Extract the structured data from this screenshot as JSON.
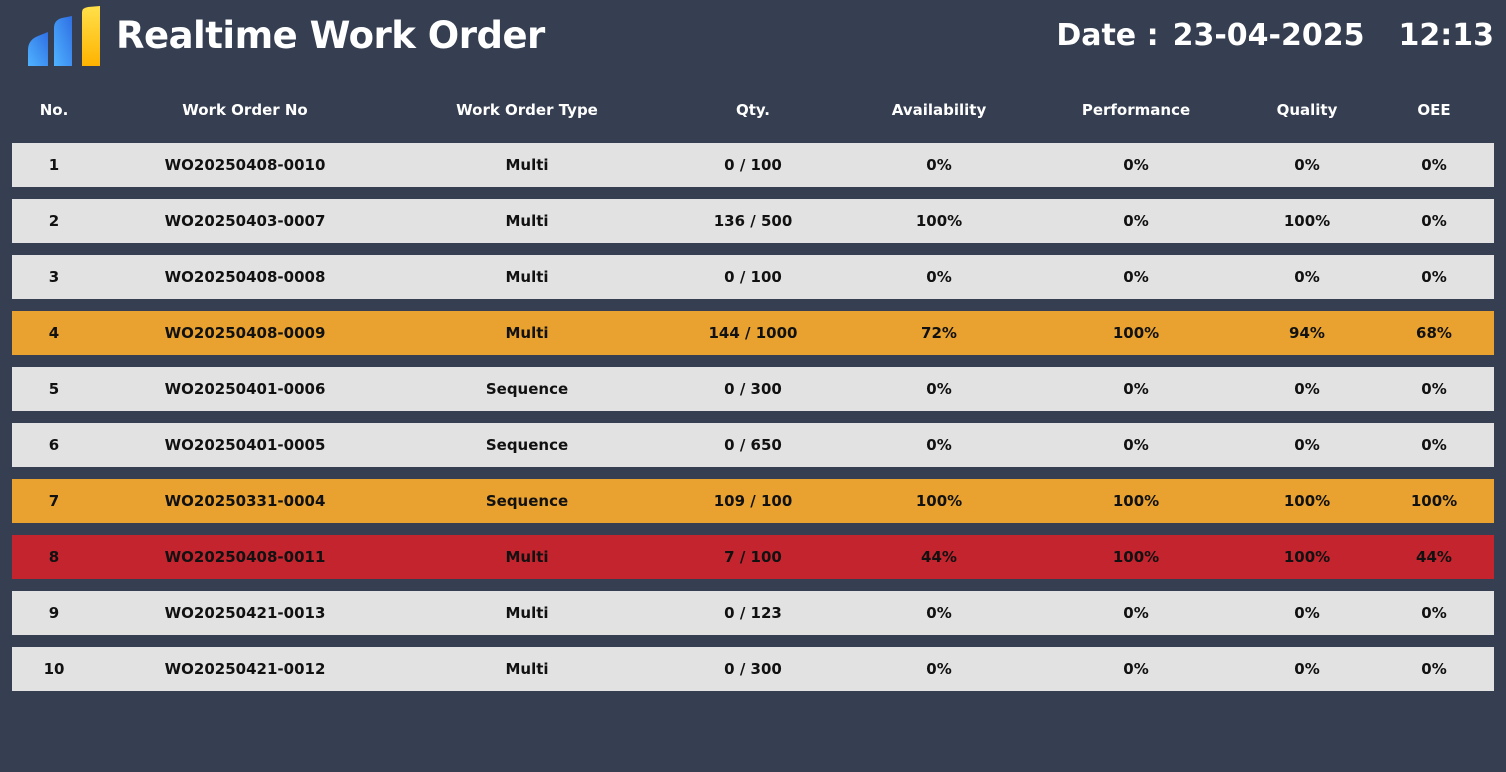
{
  "header": {
    "title": "Realtime Work Order",
    "date_label": "Date :",
    "date_value": "23-04-2025",
    "time_value": "12:13",
    "logo_icon": "bar-chart-logo-icon",
    "logo_colors": [
      "#2f6fe4",
      "#4fb3ff",
      "#ffb300",
      "#ffe04a"
    ]
  },
  "table": {
    "columns": [
      "No.",
      "Work Order No",
      "Work Order Type",
      "Qty.",
      "Availability",
      "Performance",
      "Quality",
      "OEE"
    ],
    "row_colors": {
      "normal": "#e2e2e2",
      "warn": "#e9a22f",
      "alert": "#c3242e"
    },
    "rows": [
      {
        "no": "1",
        "wo": "WO20250408-0010",
        "type": "Multi",
        "qty": "0 / 100",
        "availability": "0%",
        "performance": "0%",
        "quality": "0%",
        "oee": "0%",
        "status": "normal"
      },
      {
        "no": "2",
        "wo": "WO20250403-0007",
        "type": "Multi",
        "qty": "136 / 500",
        "availability": "100%",
        "performance": "0%",
        "quality": "100%",
        "oee": "0%",
        "status": "normal"
      },
      {
        "no": "3",
        "wo": "WO20250408-0008",
        "type": "Multi",
        "qty": "0 / 100",
        "availability": "0%",
        "performance": "0%",
        "quality": "0%",
        "oee": "0%",
        "status": "normal"
      },
      {
        "no": "4",
        "wo": "WO20250408-0009",
        "type": "Multi",
        "qty": "144 / 1000",
        "availability": "72%",
        "performance": "100%",
        "quality": "94%",
        "oee": "68%",
        "status": "warn"
      },
      {
        "no": "5",
        "wo": "WO20250401-0006",
        "type": "Sequence",
        "qty": "0 / 300",
        "availability": "0%",
        "performance": "0%",
        "quality": "0%",
        "oee": "0%",
        "status": "normal"
      },
      {
        "no": "6",
        "wo": "WO20250401-0005",
        "type": "Sequence",
        "qty": "0 / 650",
        "availability": "0%",
        "performance": "0%",
        "quality": "0%",
        "oee": "0%",
        "status": "normal"
      },
      {
        "no": "7",
        "wo": "WO20250331-0004",
        "type": "Sequence",
        "qty": "109 / 100",
        "availability": "100%",
        "performance": "100%",
        "quality": "100%",
        "oee": "100%",
        "status": "warn"
      },
      {
        "no": "8",
        "wo": "WO20250408-0011",
        "type": "Multi",
        "qty": "7 / 100",
        "availability": "44%",
        "performance": "100%",
        "quality": "100%",
        "oee": "44%",
        "status": "alert"
      },
      {
        "no": "9",
        "wo": "WO20250421-0013",
        "type": "Multi",
        "qty": "0 / 123",
        "availability": "0%",
        "performance": "0%",
        "quality": "0%",
        "oee": "0%",
        "status": "normal"
      },
      {
        "no": "10",
        "wo": "WO20250421-0012",
        "type": "Multi",
        "qty": "0 / 300",
        "availability": "0%",
        "performance": "0%",
        "quality": "0%",
        "oee": "0%",
        "status": "normal"
      }
    ]
  }
}
